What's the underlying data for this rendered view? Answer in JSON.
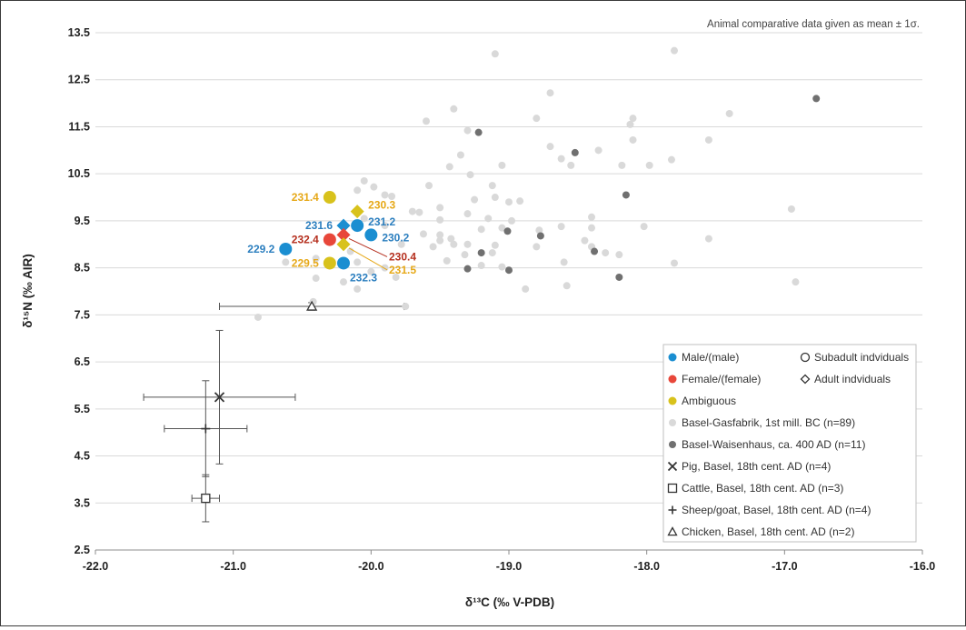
{
  "chart_data": {
    "type": "scatter",
    "xlabel": "δ¹³C (‰ V-PDB)",
    "ylabel": "δ¹⁵N (‰ AIR)",
    "xlim": [
      -22.0,
      -16.0
    ],
    "ylim": [
      2.5,
      13.5
    ],
    "x_ticks": [
      -22.0,
      -21.0,
      -20.0,
      -19.0,
      -18.0,
      -17.0,
      -16.0
    ],
    "y_ticks": [
      2.5,
      3.5,
      4.5,
      5.5,
      6.5,
      7.5,
      8.5,
      9.5,
      10.5,
      11.5,
      12.5,
      13.5
    ],
    "x_tick_labels": [
      "-22.0",
      "-21.0",
      "-20.0",
      "-19.0",
      "-18.0",
      "-17.0",
      "-16.0"
    ],
    "y_tick_labels": [
      "2.5",
      "3.5",
      "4.5",
      "5.5",
      "6.5",
      "7.5",
      "8.5",
      "9.5",
      "10.5",
      "11.5",
      "12.5",
      "13.5"
    ],
    "grid": "horizontal",
    "note": "Animal comparative data given as mean ± 1σ.",
    "legend_position": "bottom-right",
    "colors": {
      "male": "#1a8ed1",
      "female": "#e8473a",
      "ambiguous": "#d8c21c",
      "gasfabrik": "#d9d9d9",
      "waisenhaus": "#707070",
      "animal": "#333333",
      "male_label": "#2c7fbf",
      "female_label": "#b5301f",
      "ambiguous_label": "#e6a817"
    },
    "legend": [
      {
        "label": "Male/(male)",
        "marker": "dot",
        "color": "#1a8ed1"
      },
      {
        "label": "Subadult indviduals",
        "marker": "open-circle",
        "color": "#333333"
      },
      {
        "label": "Female/(female)",
        "marker": "dot",
        "color": "#e8473a"
      },
      {
        "label": "Adult indviduals",
        "marker": "open-diamond",
        "color": "#333333"
      },
      {
        "label": "Ambiguous",
        "marker": "dot",
        "color": "#d8c21c"
      },
      {
        "label": "Basel-Gasfabrik, 1st mill. BC (n=89)",
        "marker": "dot",
        "color": "#d9d9d9"
      },
      {
        "label": "Basel-Waisenhaus, ca. 400 AD (n=11)",
        "marker": "dot",
        "color": "#707070"
      },
      {
        "label": "Pig, Basel, 18th cent. AD (n=4)",
        "marker": "asterisk",
        "color": "#333333"
      },
      {
        "label": "Cattle, Basel, 18th cent. AD (n=3)",
        "marker": "open-square",
        "color": "#333333"
      },
      {
        "label": "Sheep/goat, Basel, 18th cent. AD (n=4)",
        "marker": "plus",
        "color": "#333333"
      },
      {
        "label": "Chicken, Basel, 18th cent. AD (n=2)",
        "marker": "open-triangle",
        "color": "#333333"
      }
    ],
    "series": [
      {
        "name": "Basel-Gasfabrik, 1st mill. BC (n=89)",
        "marker": "dot",
        "color": "#d9d9d9",
        "points": [
          [
            -19.1,
            13.05
          ],
          [
            -17.8,
            13.12
          ],
          [
            -18.7,
            12.22
          ],
          [
            -18.1,
            11.68
          ],
          [
            -17.4,
            11.78
          ],
          [
            -19.4,
            11.88
          ],
          [
            -19.6,
            11.62
          ],
          [
            -18.8,
            11.68
          ],
          [
            -18.12,
            11.55
          ],
          [
            -17.55,
            11.22
          ],
          [
            -19.3,
            11.42
          ],
          [
            -18.1,
            11.22
          ],
          [
            -18.7,
            11.08
          ],
          [
            -18.35,
            11.0
          ],
          [
            -18.62,
            10.82
          ],
          [
            -17.82,
            10.8
          ],
          [
            -19.35,
            10.9
          ],
          [
            -19.43,
            10.65
          ],
          [
            -19.05,
            10.68
          ],
          [
            -18.55,
            10.68
          ],
          [
            -18.18,
            10.68
          ],
          [
            -17.98,
            10.68
          ],
          [
            -19.12,
            10.25
          ],
          [
            -19.28,
            10.48
          ],
          [
            -19.58,
            10.25
          ],
          [
            -20.05,
            10.35
          ],
          [
            -20.1,
            10.15
          ],
          [
            -19.98,
            10.22
          ],
          [
            -19.9,
            10.05
          ],
          [
            -19.85,
            10.02
          ],
          [
            -19.1,
            10.0
          ],
          [
            -19.0,
            9.9
          ],
          [
            -18.92,
            9.92
          ],
          [
            -19.25,
            9.95
          ],
          [
            -19.5,
            9.78
          ],
          [
            -19.3,
            9.65
          ],
          [
            -19.7,
            9.7
          ],
          [
            -19.65,
            9.68
          ],
          [
            -19.5,
            9.52
          ],
          [
            -19.15,
            9.55
          ],
          [
            -18.98,
            9.5
          ],
          [
            -19.05,
            9.35
          ],
          [
            -19.2,
            9.32
          ],
          [
            -18.4,
            9.58
          ],
          [
            -18.62,
            9.38
          ],
          [
            -18.78,
            9.3
          ],
          [
            -18.4,
            9.35
          ],
          [
            -19.42,
            9.12
          ],
          [
            -19.5,
            9.08
          ],
          [
            -19.5,
            9.2
          ],
          [
            -19.62,
            9.22
          ],
          [
            -19.4,
            9.0
          ],
          [
            -19.3,
            9.0
          ],
          [
            -19.1,
            8.98
          ],
          [
            -18.8,
            8.95
          ],
          [
            -18.4,
            8.95
          ],
          [
            -18.3,
            8.82
          ],
          [
            -19.32,
            8.78
          ],
          [
            -19.12,
            8.82
          ],
          [
            -19.45,
            8.65
          ],
          [
            -19.05,
            8.52
          ],
          [
            -18.6,
            8.62
          ],
          [
            -18.58,
            8.12
          ],
          [
            -18.88,
            8.05
          ],
          [
            -20.1,
            8.05
          ],
          [
            -20.2,
            8.2
          ],
          [
            -20.4,
            8.28
          ],
          [
            -20.0,
            8.42
          ],
          [
            -19.9,
            8.5
          ],
          [
            -20.1,
            8.62
          ],
          [
            -20.4,
            8.7
          ],
          [
            -19.82,
            8.3
          ],
          [
            -20.42,
            7.78
          ],
          [
            -20.82,
            7.45
          ],
          [
            -19.75,
            7.68
          ],
          [
            -20.62,
            8.62
          ],
          [
            -16.95,
            9.75
          ],
          [
            -17.55,
            9.12
          ],
          [
            -16.92,
            8.2
          ],
          [
            -17.8,
            8.6
          ],
          [
            -18.02,
            9.38
          ],
          [
            -18.2,
            8.78
          ],
          [
            -19.2,
            8.55
          ],
          [
            -19.55,
            8.95
          ],
          [
            -19.78,
            9.0
          ],
          [
            -19.9,
            9.4
          ],
          [
            -20.05,
            9.55
          ],
          [
            -20.15,
            8.85
          ],
          [
            -18.45,
            9.08
          ]
        ]
      },
      {
        "name": "Basel-Waisenhaus, ca. 400 AD (n=11)",
        "marker": "dot",
        "color": "#707070",
        "points": [
          [
            -19.22,
            11.38
          ],
          [
            -18.52,
            10.95
          ],
          [
            -16.77,
            12.1
          ],
          [
            -18.15,
            10.05
          ],
          [
            -19.01,
            9.28
          ],
          [
            -18.77,
            9.18
          ],
          [
            -19.2,
            8.82
          ],
          [
            -19.3,
            8.48
          ],
          [
            -19.0,
            8.45
          ],
          [
            -18.38,
            8.85
          ],
          [
            -18.2,
            8.3
          ]
        ]
      },
      {
        "name": "Male/(male)",
        "marker": "dot",
        "color": "#1a8ed1",
        "points": [
          [
            -20.62,
            8.9
          ],
          [
            -20.1,
            9.4
          ],
          [
            -20.0,
            9.2
          ],
          [
            -20.2,
            8.6
          ]
        ]
      },
      {
        "name": "Male/(male)",
        "marker": "filled-diamond",
        "color": "#1a8ed1",
        "points": [
          [
            -20.2,
            9.4
          ]
        ]
      },
      {
        "name": "Female/(female)",
        "marker": "dot",
        "color": "#e8473a",
        "points": [
          [
            -20.3,
            9.1
          ]
        ]
      },
      {
        "name": "Female/(female)",
        "marker": "filled-diamond",
        "color": "#e8473a",
        "points": [
          [
            -20.2,
            9.2
          ]
        ]
      },
      {
        "name": "Ambiguous",
        "marker": "dot",
        "color": "#d8c21c",
        "points": [
          [
            -20.3,
            10.0
          ],
          [
            -20.3,
            8.6
          ]
        ]
      },
      {
        "name": "Ambiguous",
        "marker": "filled-diamond",
        "color": "#d8c21c",
        "points": [
          [
            -20.1,
            9.7
          ],
          [
            -20.2,
            9.0
          ]
        ]
      }
    ],
    "animal_means": [
      {
        "name": "Pig, Basel, 18th cent. AD (n=4)",
        "marker": "asterisk",
        "x": -21.1,
        "y": 5.75,
        "x_sd": 0.55,
        "y_sd": 1.42
      },
      {
        "name": "Cattle, Basel, 18th cent. AD (n=3)",
        "marker": "open-square",
        "x": -21.2,
        "y": 3.6,
        "x_sd": 0.1,
        "y_sd": 0.5
      },
      {
        "name": "Sheep/goat, Basel, 18th cent. AD (n=4)",
        "marker": "plus",
        "x": -21.2,
        "y": 5.08,
        "x_sd": 0.3,
        "y_sd": 1.02
      },
      {
        "name": "Chicken, Basel, 18th cent. AD (n=2)",
        "marker": "open-triangle",
        "x": -20.43,
        "y": 7.68,
        "x_sd": 0.67,
        "y_sd": 0.08
      }
    ],
    "annotations": [
      {
        "text": "231.4",
        "x": -20.3,
        "y": 10.0,
        "color": "#e6a817",
        "anchor": "end"
      },
      {
        "text": "230.3",
        "x": -20.1,
        "y": 9.7,
        "color": "#e6a817",
        "anchor": "start"
      },
      {
        "text": "231.6",
        "x": -20.2,
        "y": 9.4,
        "color": "#2c7fbf",
        "anchor": "end"
      },
      {
        "text": "231.2",
        "x": -20.1,
        "y": 9.4,
        "color": "#2c7fbf",
        "anchor": "start"
      },
      {
        "text": "230.2",
        "x": -20.0,
        "y": 9.2,
        "color": "#2c7fbf",
        "anchor": "start"
      },
      {
        "text": "232.4",
        "x": -20.3,
        "y": 9.1,
        "color": "#b5301f",
        "anchor": "end"
      },
      {
        "text": "229.2",
        "x": -20.62,
        "y": 8.9,
        "color": "#2c7fbf",
        "anchor": "end"
      },
      {
        "text": "230.4",
        "x": -20.2,
        "y": 9.2,
        "color": "#b5301f",
        "anchor": "start",
        "leader": true
      },
      {
        "text": "231.5",
        "x": -20.2,
        "y": 9.0,
        "color": "#e6a817",
        "anchor": "start",
        "leader": true
      },
      {
        "text": "229.5",
        "x": -20.3,
        "y": 8.6,
        "color": "#e6a817",
        "anchor": "end"
      },
      {
        "text": "232.3",
        "x": -20.2,
        "y": 8.6,
        "color": "#2c7fbf",
        "anchor": "middle"
      }
    ]
  }
}
